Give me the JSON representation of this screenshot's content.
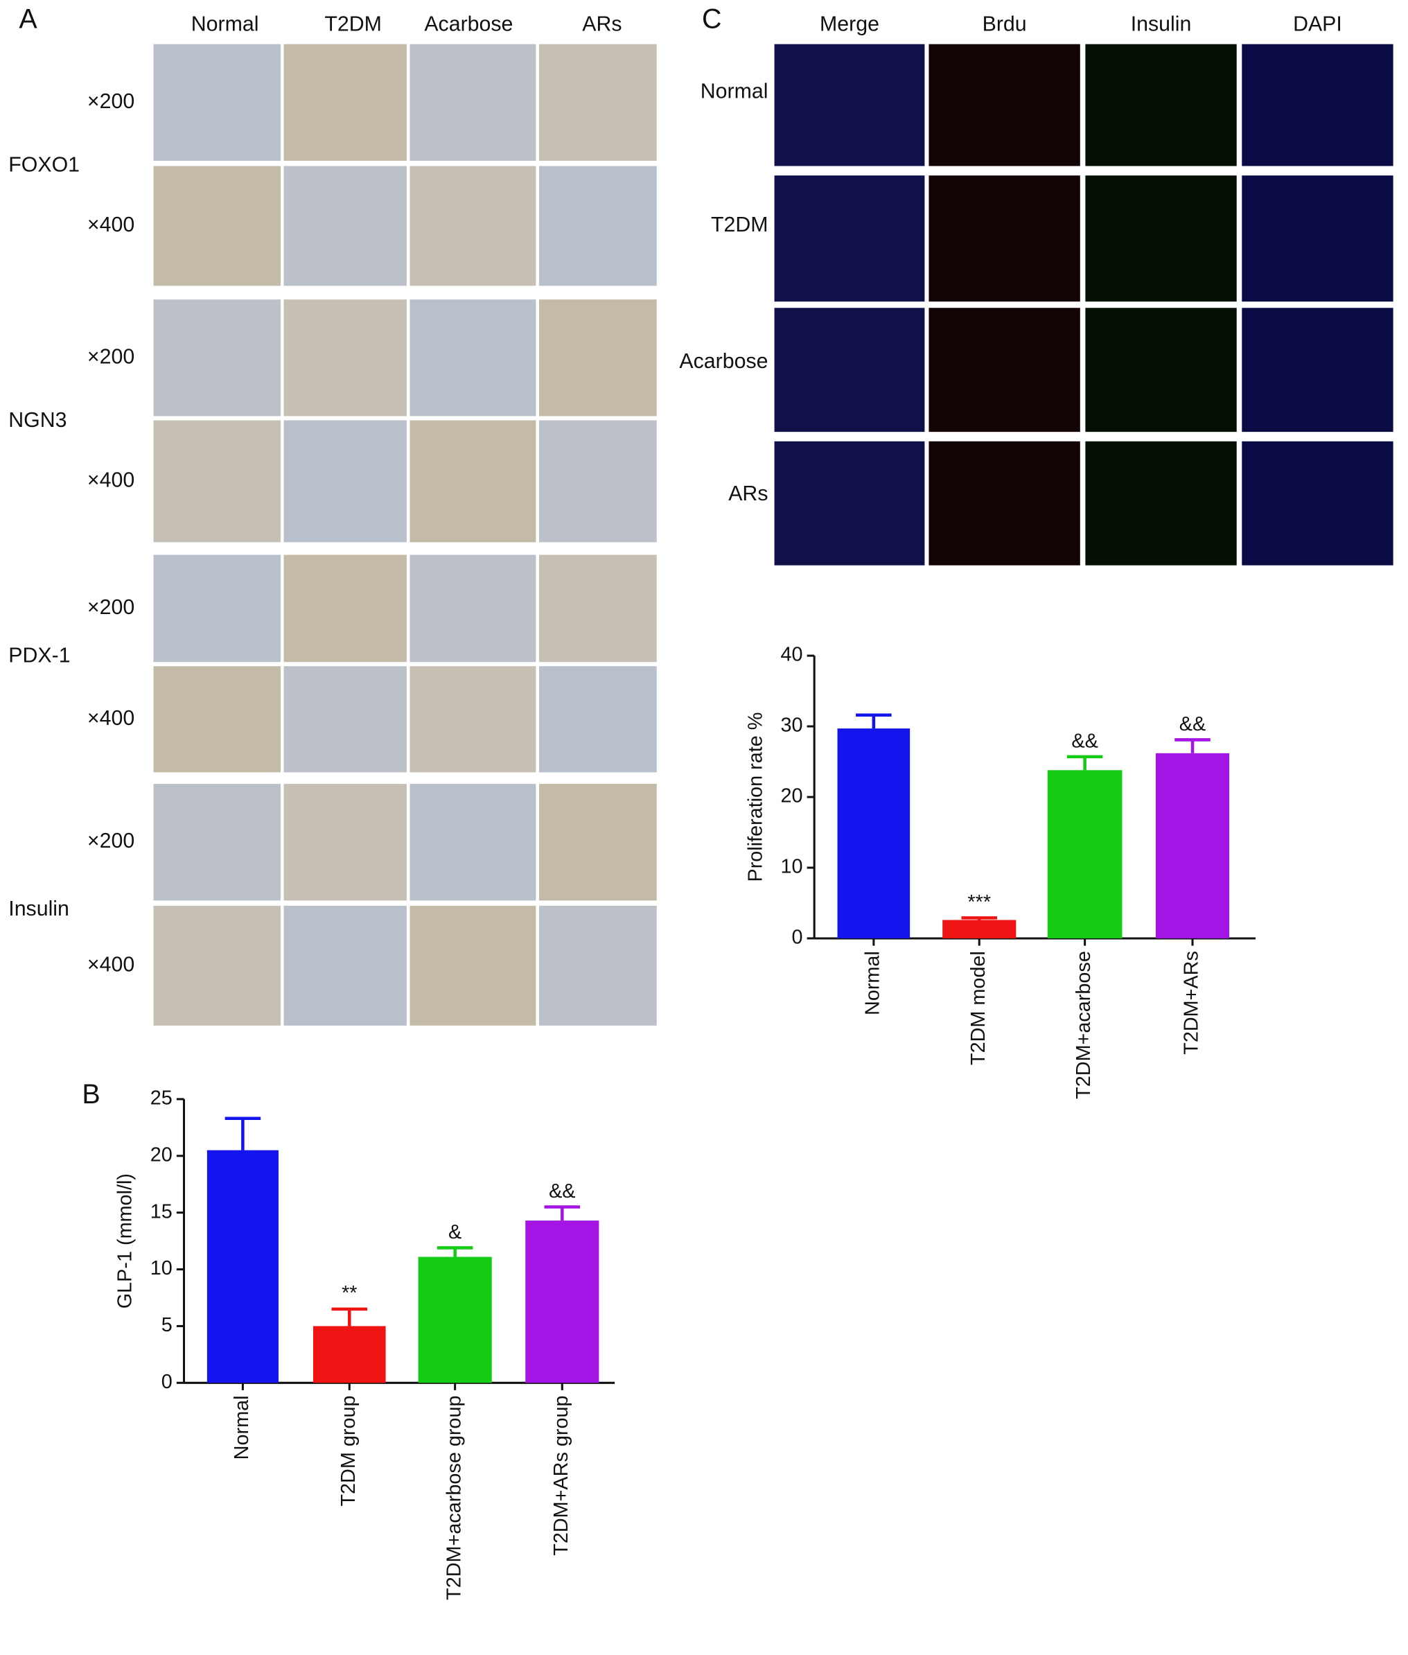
{
  "panel_a": {
    "label": "A",
    "columns": [
      "Normal",
      "T2DM",
      "Acarbose",
      "ARs"
    ],
    "rows": [
      {
        "name": "FOXO1",
        "magnifications": [
          "×200",
          "×400"
        ]
      },
      {
        "name": "NGN3",
        "magnifications": [
          "×200",
          "×400"
        ]
      },
      {
        "name": "PDX-1",
        "magnifications": [
          "×200",
          "×400"
        ]
      },
      {
        "name": "Insulin",
        "magnifications": [
          "×200",
          "×400"
        ]
      }
    ]
  },
  "panel_c": {
    "label": "C",
    "columns": [
      "Merge",
      "Brdu",
      "Insulin",
      "DAPI"
    ],
    "rows": [
      "Normal",
      "T2DM",
      "Acarbose",
      "ARs"
    ]
  },
  "chart_data": [
    {
      "type": "bar",
      "panel_label": "B",
      "y_label": "GLP-1 (mmol/l)",
      "categories": [
        "Normal",
        "T2DM group",
        "T2DM+acarbose group",
        "T2DM+ARs group"
      ],
      "values": [
        20.5,
        5.0,
        11.1,
        14.3
      ],
      "errors": [
        2.8,
        1.5,
        0.8,
        1.2
      ],
      "annotations": [
        null,
        "**",
        "&",
        "&&"
      ],
      "colors": [
        "#1414ee",
        "#ee1414",
        "#14cc14",
        "#a414e4"
      ],
      "ylim": [
        0,
        25
      ],
      "yticks": [
        0,
        5,
        10,
        15,
        20,
        25
      ]
    },
    {
      "type": "bar",
      "y_label": "Proliferation rate %",
      "categories": [
        "Normal",
        "T2DM model",
        "T2DM+acarbose",
        "T2DM+ARs"
      ],
      "values": [
        29.7,
        2.6,
        23.8,
        26.2
      ],
      "errors": [
        1.9,
        0.3,
        1.9,
        1.9
      ],
      "annotations": [
        null,
        "***",
        "&&",
        "&&"
      ],
      "colors": [
        "#1414ee",
        "#ee1414",
        "#14cc14",
        "#a414e4"
      ],
      "ylim": [
        0,
        40
      ],
      "yticks": [
        0,
        10,
        20,
        30,
        40
      ]
    }
  ]
}
